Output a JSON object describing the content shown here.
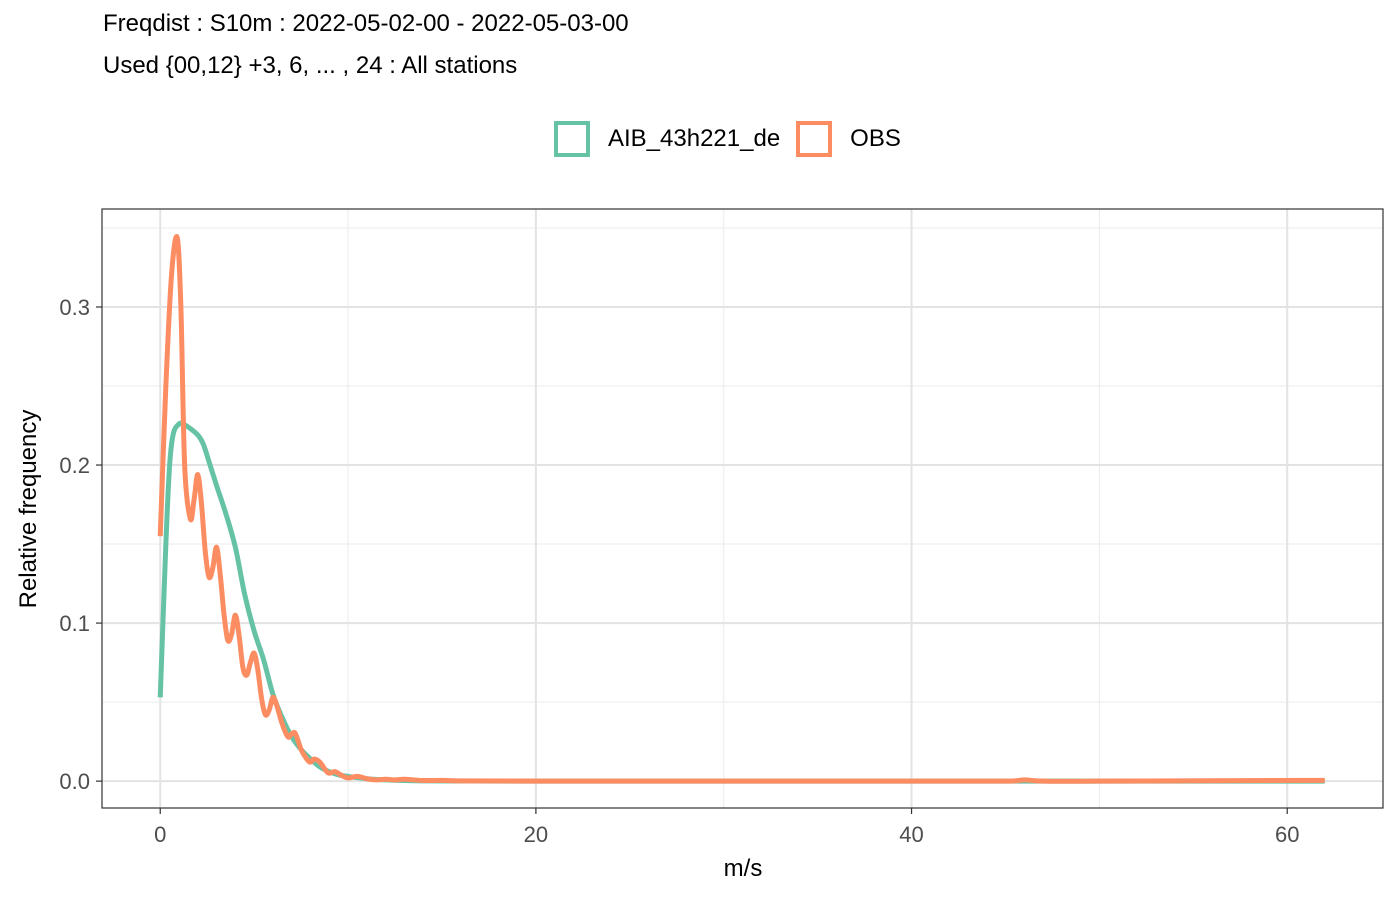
{
  "chart_data": {
    "type": "line",
    "title": "Freqdist : S10m : 2022-05-02-00 - 2022-05-03-00",
    "subtitle": "Used {00,12} +3, 6, ... , 24 : All stations",
    "xlabel": "m/s",
    "ylabel": "Relative frequency",
    "xlim": [
      -3.1,
      65.1
    ],
    "ylim": [
      -0.017,
      0.362
    ],
    "x_ticks": [
      0,
      20,
      40,
      60
    ],
    "x_tick_labels": [
      "0",
      "20",
      "40",
      "60"
    ],
    "y_ticks": [
      0.0,
      0.1,
      0.2,
      0.3
    ],
    "y_tick_labels": [
      "0.0",
      "0.1",
      "0.2",
      "0.3"
    ],
    "grid": true,
    "legend_position": "top",
    "legend": [
      "AIB_43h221_de",
      "OBS"
    ],
    "series": [
      {
        "name": "AIB_43h221_de",
        "color": "#66c2a5",
        "x": [
          0,
          0.3,
          0.5,
          0.7,
          1.0,
          1.2,
          1.5,
          2.0,
          2.3,
          2.6,
          3.0,
          3.5,
          4.0,
          4.5,
          5.0,
          5.5,
          6.0,
          6.5,
          7.0,
          7.5,
          8.0,
          8.5,
          9.0,
          9.5,
          10.0,
          11.0,
          12.0,
          13.0,
          14.0,
          16.0,
          20.0,
          30.0,
          40.0,
          50.0,
          62.0
        ],
        "y": [
          0.053,
          0.15,
          0.2,
          0.22,
          0.226,
          0.226,
          0.224,
          0.219,
          0.213,
          0.202,
          0.187,
          0.169,
          0.148,
          0.118,
          0.095,
          0.077,
          0.055,
          0.04,
          0.028,
          0.02,
          0.014,
          0.009,
          0.006,
          0.004,
          0.003,
          0.0015,
          0.0008,
          0.0004,
          0.0002,
          0.0001,
          0.0,
          0.0,
          0.0,
          0.0,
          0.0
        ]
      },
      {
        "name": "OBS",
        "color": "#fc8d62",
        "x": [
          0,
          0.3,
          0.6,
          0.9,
          1.1,
          1.3,
          1.6,
          1.8,
          2.0,
          2.2,
          2.4,
          2.6,
          2.8,
          3.0,
          3.2,
          3.4,
          3.6,
          3.8,
          4.0,
          4.2,
          4.4,
          4.6,
          4.8,
          5.0,
          5.2,
          5.4,
          5.6,
          5.8,
          6.0,
          6.2,
          6.5,
          6.8,
          7.0,
          7.2,
          7.5,
          7.8,
          8.0,
          8.2,
          8.5,
          8.8,
          9.0,
          9.3,
          9.6,
          10.0,
          10.5,
          11.0,
          11.5,
          12.0,
          12.5,
          13.0,
          14.0,
          15.0,
          16.0,
          20.0,
          30.0,
          40.0,
          45.0,
          46.0,
          47.0,
          50.0,
          62.0
        ],
        "y": [
          0.155,
          0.25,
          0.32,
          0.344,
          0.3,
          0.2,
          0.166,
          0.178,
          0.194,
          0.175,
          0.145,
          0.129,
          0.135,
          0.148,
          0.13,
          0.105,
          0.089,
          0.093,
          0.105,
          0.092,
          0.072,
          0.067,
          0.075,
          0.081,
          0.07,
          0.052,
          0.042,
          0.045,
          0.053,
          0.048,
          0.036,
          0.028,
          0.03,
          0.03,
          0.02,
          0.014,
          0.012,
          0.014,
          0.012,
          0.007,
          0.005,
          0.006,
          0.004,
          0.002,
          0.003,
          0.0015,
          0.0008,
          0.0012,
          0.0008,
          0.0012,
          0.0004,
          0.0005,
          0.0002,
          0.0,
          0.0,
          0.0,
          0.0,
          0.0008,
          0.0,
          0.0,
          0.0005
        ]
      }
    ]
  }
}
